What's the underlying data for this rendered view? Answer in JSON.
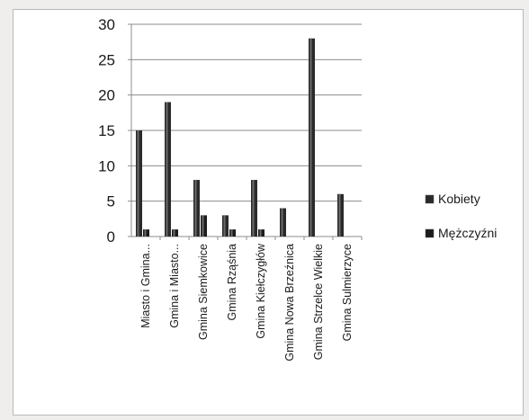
{
  "chart_data": {
    "type": "bar",
    "title": "",
    "xlabel": "",
    "ylabel": "",
    "ylim": [
      0,
      30
    ],
    "yticks": [
      "0",
      "5",
      "10",
      "15",
      "20",
      "25",
      "30"
    ],
    "grid": true,
    "legend_position": "right",
    "categories": [
      "Miasto i Gmina...",
      "Gmina i Miasto...",
      "Gmina Siemkowice",
      "Gmina Rząśnia",
      "Gmina Kiełczygłów",
      "Gmina Nowa Brzeźnica",
      "Gmina Strzelce Wielkie",
      "Gmina Sulmierzyce"
    ],
    "series": [
      {
        "name": "Kobiety",
        "values": [
          15,
          19,
          8,
          3,
          8,
          4,
          28,
          6
        ],
        "color": "#2a2a2a"
      },
      {
        "name": "Mężczyźni",
        "values": [
          1,
          1,
          3,
          1,
          1,
          0,
          0,
          0
        ],
        "color": "#1c1c1c"
      }
    ]
  }
}
